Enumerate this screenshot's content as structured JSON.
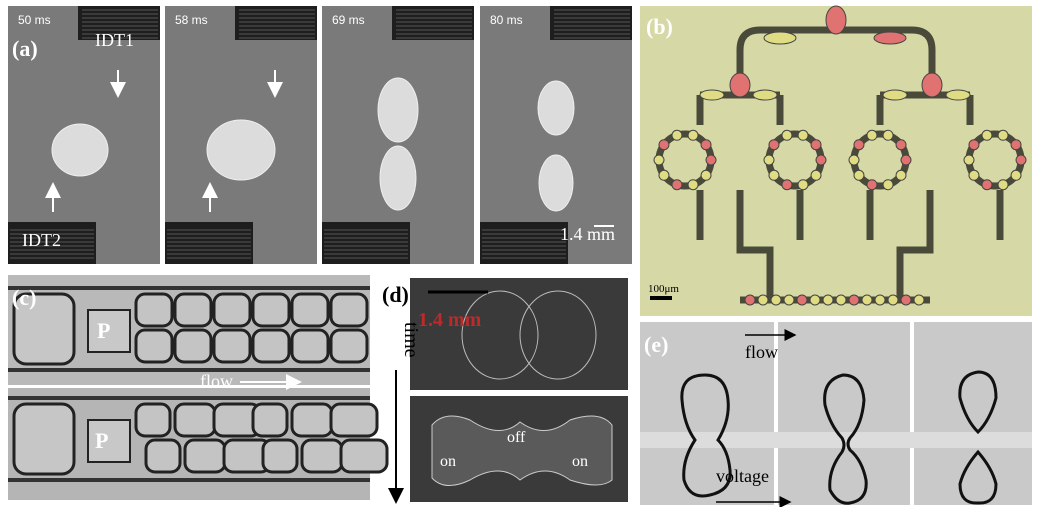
{
  "panels": {
    "a": {
      "label": "(a)",
      "frames": [
        "50 ms",
        "58 ms",
        "69 ms",
        "80 ms"
      ],
      "idt1": "IDT1",
      "idt2": "IDT2",
      "scale": "1.4 mm"
    },
    "b": {
      "label": "(b)",
      "scale": "100μm"
    },
    "c": {
      "label": "(c)",
      "p_top": "P",
      "p_bottom": "P",
      "flow": "flow"
    },
    "d": {
      "label": "(d)",
      "scale": "1.4 mm",
      "axis": "time",
      "off": "off",
      "on_left": "on",
      "on_right": "on"
    },
    "e": {
      "label": "(e)",
      "flow": "flow",
      "voltage": "voltage"
    }
  }
}
